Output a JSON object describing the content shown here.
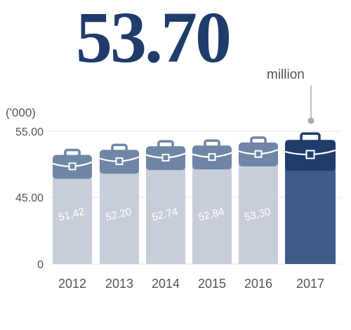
{
  "headline": {
    "value": "53.70",
    "unit": "million"
  },
  "chart_data": {
    "type": "bar",
    "unit_label": "('000)",
    "categories": [
      "2012",
      "2013",
      "2014",
      "2015",
      "2016",
      "2017"
    ],
    "values": [
      51.42,
      52.2,
      52.74,
      52.84,
      53.3,
      53.7
    ],
    "value_labels": [
      "51.42",
      "52.20",
      "52.74",
      "52,84",
      "53,30",
      ""
    ],
    "yticks": [
      "55.00",
      "45.00",
      "0"
    ],
    "ylim": [
      0,
      55
    ],
    "axis_break": true,
    "highlight_index": 5,
    "grid": true,
    "colors": {
      "bar": "#c8ced9",
      "briefcase": "#6f86a6",
      "highlight_bar": "#3d5c8a",
      "highlight_briefcase": "#1f3c6b",
      "connector": "#aaaaaa",
      "axis_text": "#555555"
    }
  }
}
